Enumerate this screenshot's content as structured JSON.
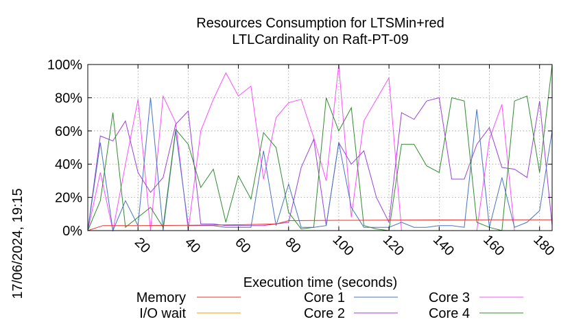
{
  "chart_data": {
    "type": "line",
    "title": "Resources Consumption for LTSMin+red",
    "subtitle": "LTLCardinality on Raft-PT-09",
    "xlabel": "Execution time (seconds)",
    "ylabel": "",
    "side_label": "17/06/2024, 19:15",
    "xlim": [
      0,
      185
    ],
    "ylim": [
      0,
      100
    ],
    "x_ticks": [
      20,
      40,
      60,
      80,
      100,
      120,
      140,
      160,
      180
    ],
    "y_ticks": [
      0,
      20,
      40,
      60,
      80,
      100
    ],
    "y_tick_labels": [
      "0%",
      "20%",
      "40%",
      "60%",
      "80%",
      "100%"
    ],
    "grid": true,
    "legend_position": "bottom",
    "series": [
      {
        "name": "Memory",
        "color": "#e8322a",
        "x": [
          0,
          6,
          20,
          40,
          60,
          75,
          80,
          100,
          120,
          140,
          160,
          180,
          185
        ],
        "y": [
          0,
          3,
          3,
          3.2,
          3.5,
          4,
          6,
          6.2,
          6.3,
          6.4,
          6.5,
          6.5,
          6.5
        ]
      },
      {
        "name": "I/O wait",
        "color": "#ff9900",
        "x": [
          0,
          185
        ],
        "y": [
          0,
          0
        ]
      },
      {
        "name": "Core 1",
        "color": "#4472c4",
        "x": [
          0,
          5,
          10,
          15,
          20,
          25,
          30,
          35,
          40,
          45,
          50,
          55,
          60,
          65,
          70,
          75,
          80,
          85,
          90,
          95,
          100,
          105,
          110,
          115,
          120,
          125,
          130,
          135,
          140,
          145,
          150,
          155,
          160,
          165,
          170,
          175,
          180,
          185
        ],
        "y": [
          0,
          53,
          0,
          18,
          3,
          80,
          0,
          60,
          3,
          3,
          3,
          2,
          2,
          2,
          48,
          3,
          28,
          2,
          2,
          3,
          53,
          14,
          2,
          2,
          2,
          5,
          2,
          2,
          3,
          3,
          2,
          73,
          2,
          32,
          2,
          5,
          12,
          60
        ]
      },
      {
        "name": "Core 2",
        "color": "#9c3fd8",
        "x": [
          0,
          5,
          10,
          15,
          20,
          25,
          30,
          35,
          40,
          45,
          50,
          55,
          60,
          65,
          70,
          75,
          80,
          85,
          90,
          95,
          100,
          105,
          110,
          115,
          120,
          125,
          130,
          135,
          140,
          145,
          150,
          155,
          160,
          165,
          170,
          175,
          180,
          185
        ],
        "y": [
          0,
          57,
          54,
          66,
          35,
          23,
          32,
          64,
          72,
          4,
          4,
          3,
          3,
          3,
          3,
          4,
          5,
          38,
          55,
          3,
          53,
          40,
          48,
          20,
          5,
          71,
          67,
          78,
          80,
          31,
          31,
          52,
          62,
          38,
          37,
          32,
          78,
          3
        ]
      },
      {
        "name": "Core 3",
        "color": "#ff4dff",
        "x": [
          0,
          5,
          10,
          15,
          20,
          25,
          30,
          35,
          40,
          45,
          50,
          55,
          60,
          65,
          70,
          75,
          80,
          85,
          90,
          95,
          100,
          105,
          110,
          115,
          120,
          125,
          130,
          135,
          140,
          145,
          150,
          155,
          160,
          165,
          170,
          175,
          180,
          185
        ],
        "y": [
          0,
          35,
          0,
          40,
          79,
          0,
          81,
          65,
          0,
          60,
          79,
          95,
          81,
          87,
          31,
          68,
          77,
          79,
          56,
          30,
          100,
          8,
          66,
          79,
          92,
          0,
          0,
          0,
          0,
          0,
          0,
          0,
          55,
          76,
          0,
          0,
          0,
          0
        ]
      },
      {
        "name": "Core 4",
        "color": "#2e8b2e",
        "x": [
          0,
          5,
          10,
          15,
          20,
          25,
          30,
          35,
          40,
          45,
          50,
          55,
          60,
          65,
          70,
          75,
          80,
          85,
          90,
          95,
          100,
          105,
          110,
          115,
          120,
          125,
          130,
          135,
          140,
          145,
          150,
          155,
          160,
          165,
          170,
          175,
          180,
          185
        ],
        "y": [
          0,
          18,
          71,
          2,
          8,
          14,
          2,
          61,
          52,
          26,
          37,
          5,
          33,
          19,
          59,
          50,
          11,
          1,
          2,
          80,
          60,
          74,
          3,
          1,
          0,
          52,
          52,
          39,
          35,
          80,
          78,
          5,
          2,
          0,
          78,
          81,
          35,
          100
        ]
      }
    ]
  }
}
